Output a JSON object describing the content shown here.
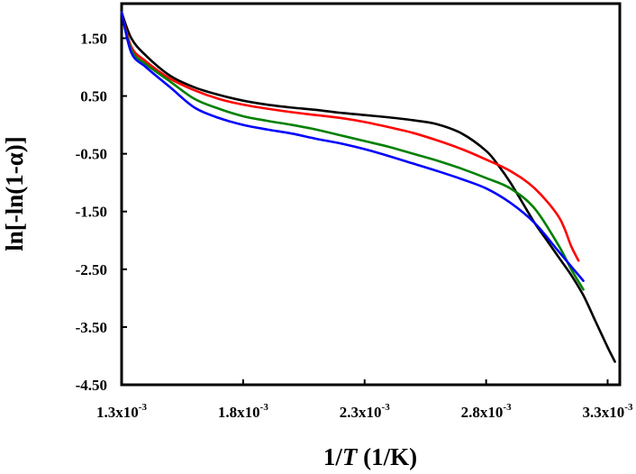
{
  "chart_data": {
    "type": "line",
    "title": "",
    "xlabel": {
      "prefix": "1/",
      "italic": "T",
      "suffix": " (1/K)"
    },
    "ylabel": "ln[-ln(1-α)]",
    "xlim": [
      0.0013,
      0.00335
    ],
    "ylim": [
      -4.5,
      2.1
    ],
    "grid": false,
    "x_ticks": [
      {
        "value": 0.0013,
        "mantissa": "1.3x10",
        "exponent": "-3"
      },
      {
        "value": 0.0018,
        "mantissa": "1.8x10",
        "exponent": "-3"
      },
      {
        "value": 0.0023,
        "mantissa": "2.3x10",
        "exponent": "-3"
      },
      {
        "value": 0.0028,
        "mantissa": "2.8x10",
        "exponent": "-3"
      },
      {
        "value": 0.0033,
        "mantissa": "3.3x10",
        "exponent": "-3"
      }
    ],
    "y_ticks": [
      {
        "value": 1.5,
        "label": "1.50"
      },
      {
        "value": 0.5,
        "label": "0.50"
      },
      {
        "value": -0.5,
        "label": "-0.50"
      },
      {
        "value": -1.5,
        "label": "-1.50"
      },
      {
        "value": -2.5,
        "label": "-2.50"
      },
      {
        "value": -3.5,
        "label": "-3.50"
      },
      {
        "value": -4.5,
        "label": "-4.50"
      }
    ],
    "series": [
      {
        "color": "#000000",
        "x": [
          0.0013,
          0.00134,
          0.0014,
          0.0015,
          0.0016,
          0.0017,
          0.0018,
          0.0019,
          0.002,
          0.0021,
          0.0022,
          0.0023,
          0.0024,
          0.0025,
          0.0026,
          0.0027,
          0.0028,
          0.00285,
          0.0029,
          0.00295,
          0.003,
          0.00305,
          0.0031,
          0.00315,
          0.0032,
          0.00325,
          0.0033,
          0.00333
        ],
        "y": [
          1.95,
          1.5,
          1.2,
          0.85,
          0.65,
          0.52,
          0.42,
          0.35,
          0.3,
          0.26,
          0.21,
          0.17,
          0.13,
          0.08,
          0.01,
          -0.15,
          -0.45,
          -0.7,
          -1.0,
          -1.35,
          -1.7,
          -2.0,
          -2.3,
          -2.6,
          -2.95,
          -3.4,
          -3.85,
          -4.1
        ]
      },
      {
        "color": "#ff0000",
        "x": [
          0.0013,
          0.00134,
          0.0014,
          0.0015,
          0.0016,
          0.0017,
          0.0018,
          0.0019,
          0.002,
          0.0021,
          0.0022,
          0.0023,
          0.0024,
          0.0025,
          0.0026,
          0.0027,
          0.0028,
          0.0029,
          0.003,
          0.0031,
          0.00315,
          0.00318
        ],
        "y": [
          1.95,
          1.35,
          1.1,
          0.8,
          0.6,
          0.45,
          0.35,
          0.28,
          0.22,
          0.17,
          0.12,
          0.05,
          -0.04,
          -0.14,
          -0.27,
          -0.42,
          -0.6,
          -0.8,
          -1.1,
          -1.6,
          -2.1,
          -2.35
        ]
      },
      {
        "color": "#008000",
        "x": [
          0.0013,
          0.00134,
          0.0014,
          0.0015,
          0.0016,
          0.0017,
          0.0018,
          0.0019,
          0.002,
          0.0021,
          0.0022,
          0.0023,
          0.0024,
          0.0025,
          0.0026,
          0.0027,
          0.0028,
          0.0029,
          0.003,
          0.0031,
          0.00315,
          0.0032
        ],
        "y": [
          1.95,
          1.3,
          1.05,
          0.75,
          0.45,
          0.28,
          0.15,
          0.07,
          0.0,
          -0.08,
          -0.18,
          -0.28,
          -0.38,
          -0.5,
          -0.62,
          -0.76,
          -0.92,
          -1.1,
          -1.45,
          -2.1,
          -2.5,
          -2.85
        ]
      },
      {
        "color": "#0000ff",
        "x": [
          0.0013,
          0.00134,
          0.0014,
          0.0015,
          0.0016,
          0.0017,
          0.0018,
          0.0019,
          0.002,
          0.0021,
          0.0022,
          0.0023,
          0.0024,
          0.0025,
          0.0026,
          0.0027,
          0.0028,
          0.0029,
          0.003,
          0.0031,
          0.0032
        ],
        "y": [
          1.95,
          1.25,
          1.0,
          0.65,
          0.3,
          0.12,
          0.0,
          -0.08,
          -0.15,
          -0.24,
          -0.32,
          -0.42,
          -0.54,
          -0.67,
          -0.8,
          -0.94,
          -1.1,
          -1.35,
          -1.7,
          -2.2,
          -2.7
        ]
      }
    ]
  }
}
